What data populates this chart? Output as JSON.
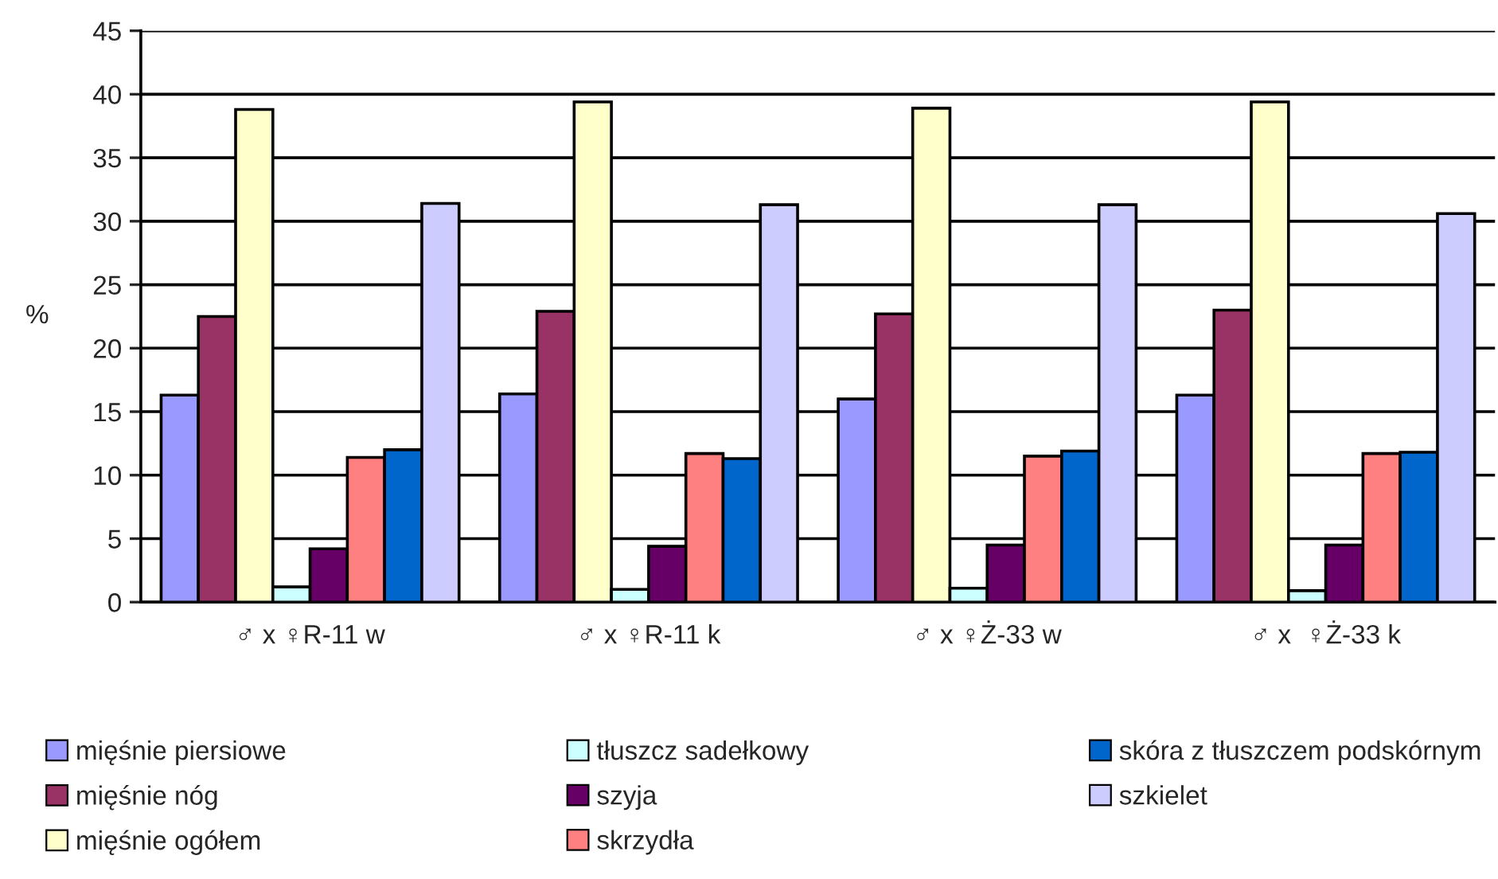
{
  "chart_data": {
    "type": "bar",
    "ylabel": "%",
    "categories": [
      "♂ x ♀R-11 w",
      "♂ x ♀R-11 k",
      "♂ x ♀Ż-33 w",
      "♂ x  ♀Ż-33 k"
    ],
    "series": [
      {
        "name": "mięśnie piersiowe",
        "color": "#9999ff",
        "values": [
          16.3,
          16.4,
          16.0,
          16.3
        ]
      },
      {
        "name": "mięśnie nóg",
        "color": "#993366",
        "values": [
          22.5,
          22.9,
          22.7,
          23.0
        ]
      },
      {
        "name": "mięśnie ogółem",
        "color": "#ffffcc",
        "values": [
          38.8,
          39.4,
          38.9,
          39.4
        ]
      },
      {
        "name": "tłuszcz sadełkowy",
        "color": "#ccffff",
        "values": [
          1.2,
          1.0,
          1.1,
          0.9
        ]
      },
      {
        "name": "szyja",
        "color": "#660066",
        "values": [
          4.2,
          4.4,
          4.5,
          4.5
        ]
      },
      {
        "name": "skrzydła",
        "color": "#ff8080",
        "values": [
          11.4,
          11.7,
          11.5,
          11.7
        ]
      },
      {
        "name": "skóra z tłuszczem podskórnym",
        "color": "#0066cc",
        "values": [
          12.0,
          11.3,
          11.9,
          11.8
        ]
      },
      {
        "name": "szkielet",
        "color": "#ccccff",
        "values": [
          31.4,
          31.3,
          31.3,
          30.6
        ]
      }
    ],
    "ylim": [
      0,
      45
    ],
    "yticks": [
      0,
      5,
      10,
      15,
      20,
      25,
      30,
      35,
      40,
      45
    ],
    "grid": "y",
    "legend": "bottom"
  }
}
